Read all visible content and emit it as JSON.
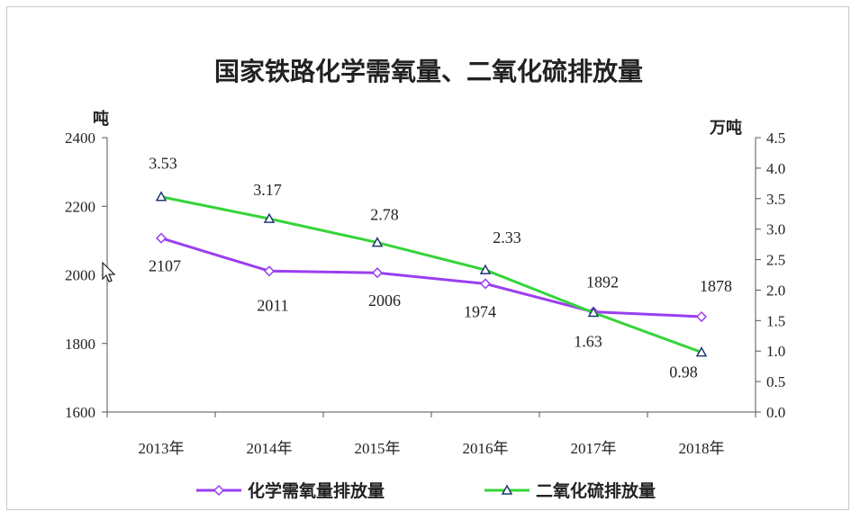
{
  "chart_data": {
    "type": "line",
    "title": "国家铁路化学需氧量、二氧化硫排放量",
    "categories": [
      "2013年",
      "2014年",
      "2015年",
      "2016年",
      "2017年",
      "2018年"
    ],
    "left_axis": {
      "unit": "吨",
      "range": [
        1600,
        2400
      ],
      "ticks": [
        "1600",
        "1800",
        "2000",
        "2200",
        "2400"
      ]
    },
    "right_axis": {
      "unit": "万吨",
      "range": [
        0.0,
        4.5
      ],
      "ticks": [
        "0.0",
        "0.5",
        "1.0",
        "1.5",
        "2.0",
        "2.5",
        "3.0",
        "3.5",
        "4.0",
        "4.5"
      ]
    },
    "series": [
      {
        "name": "化学需氧量排放量",
        "axis": "left",
        "color": "#9a3ff0",
        "marker": "diamond",
        "values": [
          2107,
          2011,
          2006,
          1974,
          1892,
          1878
        ],
        "labels": [
          "2107",
          "2011",
          "2006",
          "1974",
          "1892",
          "1878"
        ]
      },
      {
        "name": "二氧化硫排放量",
        "axis": "right",
        "color": "#35d43a",
        "marker": "triangle",
        "values": [
          3.53,
          3.17,
          2.78,
          2.33,
          1.63,
          0.98
        ],
        "labels": [
          "3.53",
          "3.17",
          "2.78",
          "2.33",
          "1.63",
          "0.98"
        ]
      }
    ],
    "grid": false,
    "legend_position": "bottom"
  }
}
